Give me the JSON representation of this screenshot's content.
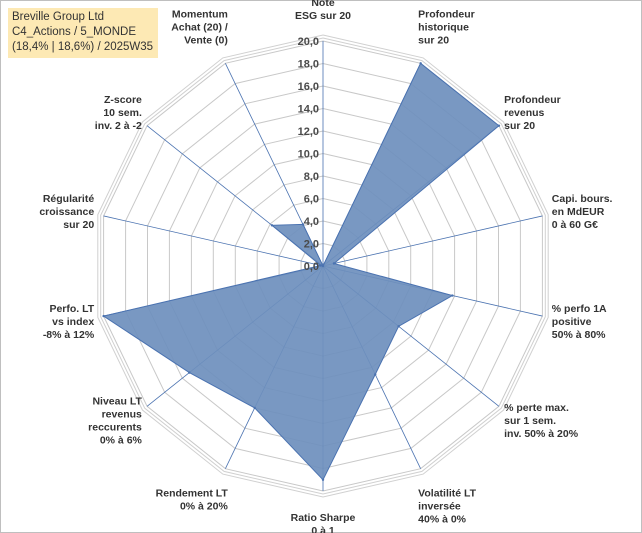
{
  "header": {
    "line1": "Breville Group Ltd",
    "line2": "C4_Actions / 5_MONDE",
    "line3": "(18,4% | 18,6%) / 2025W35"
  },
  "chart_data": {
    "type": "radar",
    "categories": [
      [
        "Note",
        "ESG sur 20"
      ],
      [
        "Profondeur",
        "historique",
        "sur 20"
      ],
      [
        "Profondeur",
        "revenus",
        "sur 20"
      ],
      [
        "Capi. bours.",
        "en MdEUR",
        "0 à 60 G€"
      ],
      [
        "% perfo 1A",
        "positive",
        "50% à 80%"
      ],
      [
        "% perte max.",
        "sur 1 sem.",
        "inv. 50% à 20%"
      ],
      [
        "Volatilité LT",
        "inversée",
        "40% à 0%"
      ],
      [
        "Ratio Sharpe",
        "0 à 1"
      ],
      [
        "Rendement LT",
        "0% à 20%"
      ],
      [
        "Niveau LT",
        "revenus",
        "reccurents",
        "0% à 6%"
      ],
      [
        "Perfo. LT",
        "vs index",
        "-8% à 12%"
      ],
      [
        "Régularité",
        "croissance",
        "sur 20"
      ],
      [
        "Z-score",
        "10 sem.",
        "inv. 2 à -2"
      ],
      [
        "Momentum",
        "Achat (20) /",
        "Vente (0)"
      ]
    ],
    "values": [
      0,
      20,
      20,
      1.0,
      11.8,
      8.6,
      10.7,
      19.0,
      14.0,
      15.2,
      20.0,
      0.2,
      5.8,
      4.1
    ],
    "rmin": 0,
    "rmax": 20,
    "ticks": [
      "0,0",
      "2,0",
      "4,0",
      "6,0",
      "8,0",
      "10,0",
      "12,0",
      "14,0",
      "16,0",
      "18,0",
      "20,0"
    ],
    "tick_values": [
      0,
      2,
      4,
      6,
      8,
      10,
      12,
      14,
      16,
      18,
      20
    ],
    "colors": {
      "fill": "#6e8fbd",
      "stroke": "#4a72b0",
      "grid": "#c8c8c8",
      "spoke": "#4a72b0"
    },
    "grid": true
  }
}
